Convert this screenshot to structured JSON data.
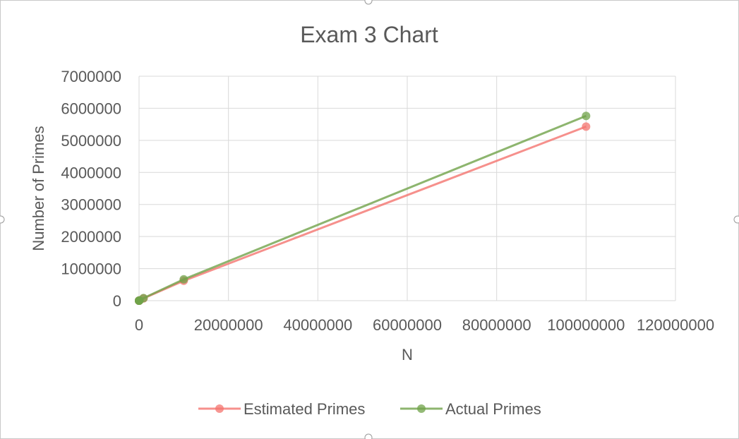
{
  "chart_data": {
    "type": "scatter",
    "title": "Exam 3 Chart",
    "xlabel": "N",
    "ylabel": "Number of Primes",
    "xlim": [
      0,
      120000000
    ],
    "ylim": [
      0,
      7000000
    ],
    "x_ticks": [
      "0",
      "20000000",
      "40000000",
      "60000000",
      "80000000",
      "100000000",
      "120000000"
    ],
    "y_ticks": [
      "0",
      "1000000",
      "2000000",
      "3000000",
      "4000000",
      "5000000",
      "6000000",
      "7000000"
    ],
    "grid": true,
    "legend_position": "bottom",
    "series": [
      {
        "name": "Estimated Primes",
        "color": "#f4746f",
        "points": [
          [
            10,
            4
          ],
          [
            100,
            22
          ],
          [
            1000,
            145
          ],
          [
            10000,
            1086
          ],
          [
            100000,
            8686
          ],
          [
            1000000,
            72382
          ],
          [
            10000000,
            620421
          ],
          [
            100000000,
            5428681
          ]
        ]
      },
      {
        "name": "Actual Primes",
        "color": "#70a34a",
        "points": [
          [
            10,
            4
          ],
          [
            100,
            25
          ],
          [
            1000,
            168
          ],
          [
            10000,
            1229
          ],
          [
            100000,
            9592
          ],
          [
            1000000,
            78498
          ],
          [
            10000000,
            664579
          ],
          [
            100000000,
            5761455
          ]
        ]
      }
    ]
  }
}
